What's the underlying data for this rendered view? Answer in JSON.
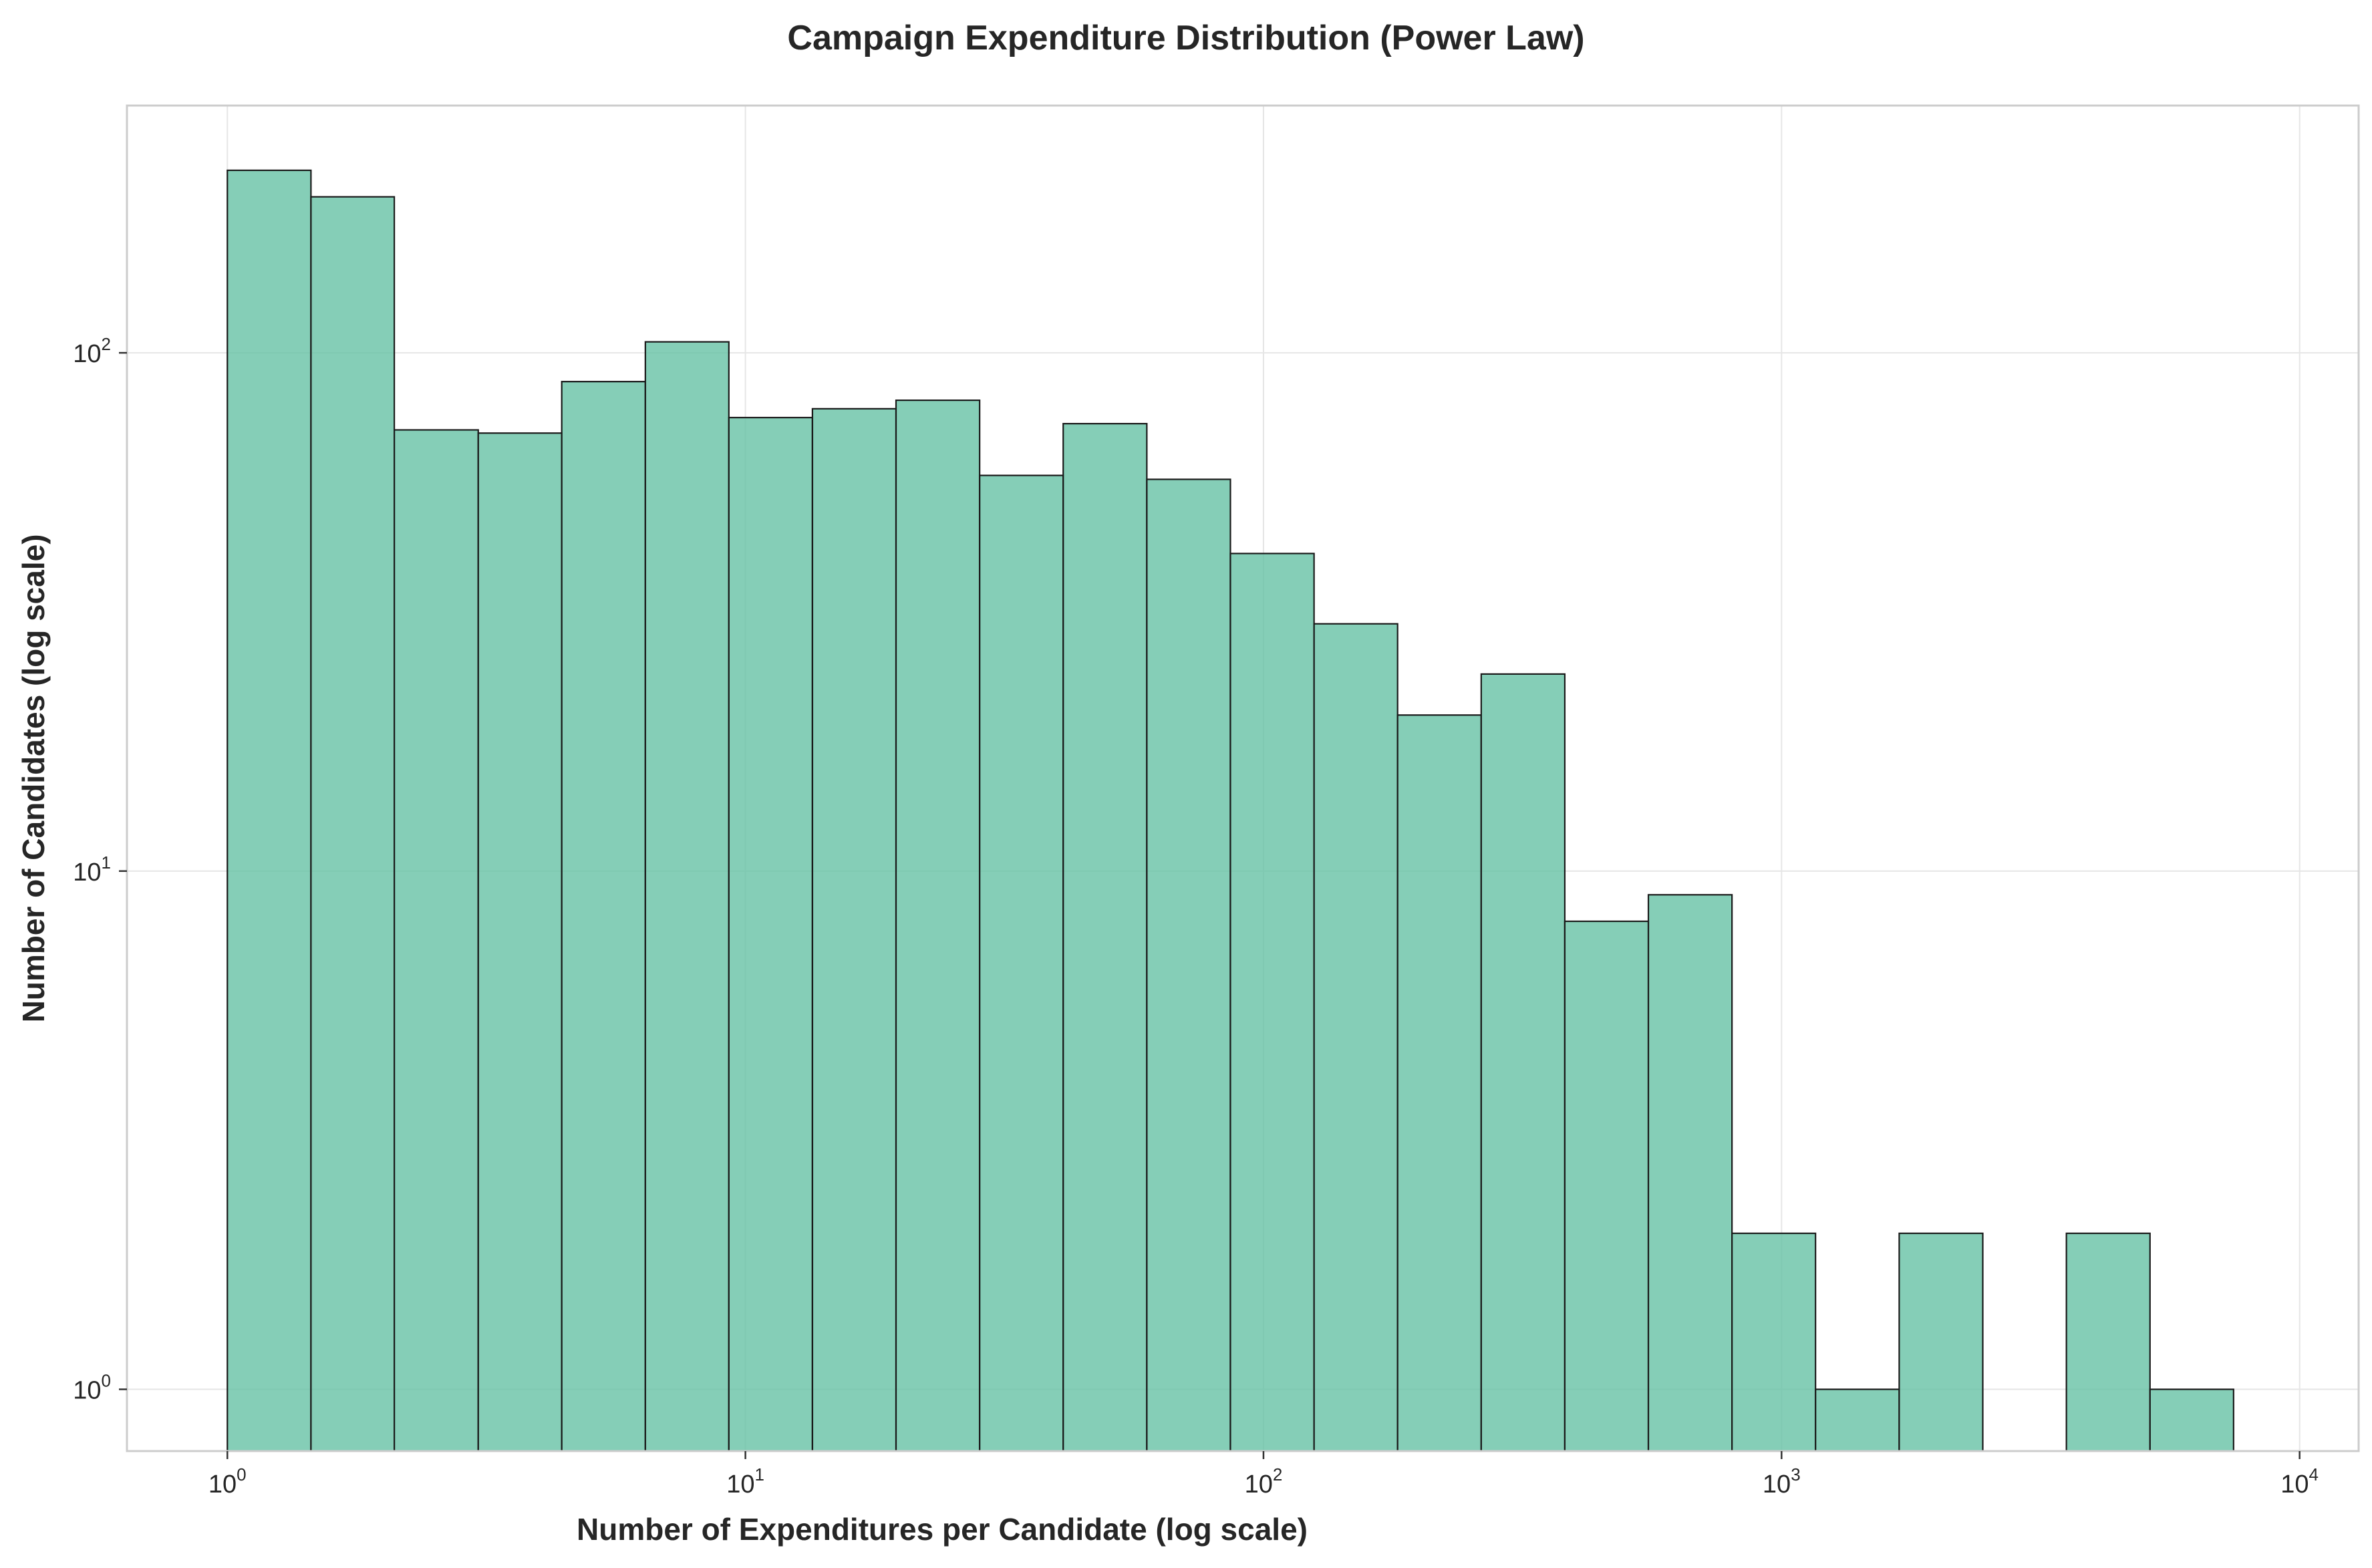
{
  "chart_data": {
    "type": "bar",
    "title": "Campaign Expenditure Distribution (Power Law)",
    "xlabel": "Number of Expenditures per Candidate (log scale)",
    "ylabel": "Number of Candidates (log scale)",
    "x_scale": "log",
    "y_scale": "log",
    "xlim": [
      0.64,
      13000
    ],
    "ylim": [
      0.76,
      300
    ],
    "x_ticks": [
      {
        "value": 1,
        "base": "10",
        "exp": "0"
      },
      {
        "value": 10,
        "base": "10",
        "exp": "1"
      },
      {
        "value": 100,
        "base": "10",
        "exp": "2"
      },
      {
        "value": 1000,
        "base": "10",
        "exp": "3"
      },
      {
        "value": 10000,
        "base": "10",
        "exp": "4"
      }
    ],
    "y_ticks": [
      {
        "value": 1,
        "base": "10",
        "exp": "0"
      },
      {
        "value": 10,
        "base": "10",
        "exp": "1"
      },
      {
        "value": 100,
        "base": "10",
        "exp": "2"
      }
    ],
    "grid": true,
    "bar_color": "#66c2a5",
    "edge_color": "#1a1a1a",
    "bin_edges": [
      1.0,
      1.45,
      2.1,
      3.05,
      4.42,
      6.41,
      9.29,
      13.47,
      19.53,
      28.32,
      41.06,
      59.54,
      86.33,
      125.2,
      181.5,
      263.2,
      381.6,
      553.3,
      802.3,
      1163,
      1687,
      2446,
      3547,
      5143,
      7457
    ],
    "counts": [
      225,
      200,
      71,
      70,
      88,
      105,
      75,
      78,
      81,
      58,
      73,
      57,
      41,
      30,
      20,
      24,
      8,
      9,
      2,
      1,
      2,
      0,
      2,
      1
    ]
  }
}
